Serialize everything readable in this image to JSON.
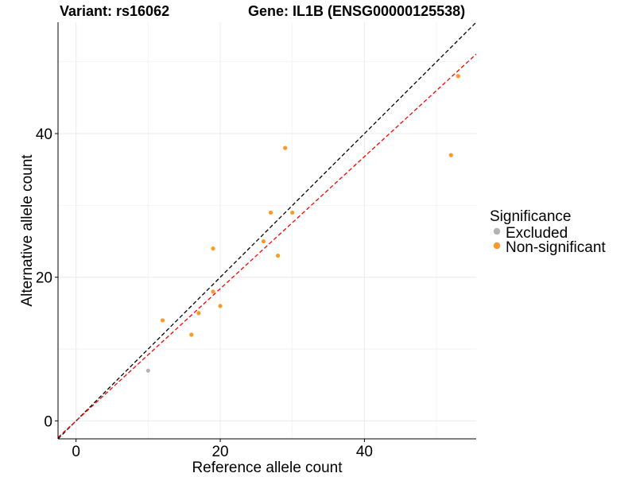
{
  "title_left": "Variant: rs16062",
  "title_right": "Gene: IL1B (ENSG00000125538)",
  "chart_data": {
    "type": "scatter",
    "xlabel": "Reference allele count",
    "ylabel": "Alternative allele count",
    "xlim": [
      -2.5,
      55.5
    ],
    "ylim": [
      -2.5,
      55.5
    ],
    "x_ticks": [
      0,
      20,
      40
    ],
    "y_ticks": [
      0,
      20,
      40
    ],
    "grid": true,
    "legend": {
      "title": "Significance",
      "position": "right",
      "entries": [
        {
          "label": "Excluded",
          "color": "#b3b3b3"
        },
        {
          "label": "Non-significant",
          "color": "#fb9a29"
        }
      ]
    },
    "series": [
      {
        "name": "Excluded",
        "color": "#b3b3b3",
        "points": [
          [
            10,
            7
          ]
        ]
      },
      {
        "name": "Non-significant",
        "color": "#fb9a29",
        "points": [
          [
            12,
            14
          ],
          [
            16,
            12
          ],
          [
            17,
            15
          ],
          [
            19,
            24
          ],
          [
            19,
            18
          ],
          [
            20,
            16
          ],
          [
            26,
            25
          ],
          [
            27,
            29
          ],
          [
            28,
            23
          ],
          [
            29,
            38
          ],
          [
            30,
            29
          ],
          [
            52,
            37
          ],
          [
            53,
            48
          ]
        ]
      }
    ],
    "reference_lines": [
      {
        "name": "identity",
        "slope": 1.0,
        "intercept": 0,
        "color": "#000000",
        "style": "dashed"
      },
      {
        "name": "fit",
        "slope": 0.92,
        "intercept": 0,
        "color": "#ff0000",
        "style": "dashed"
      }
    ]
  }
}
